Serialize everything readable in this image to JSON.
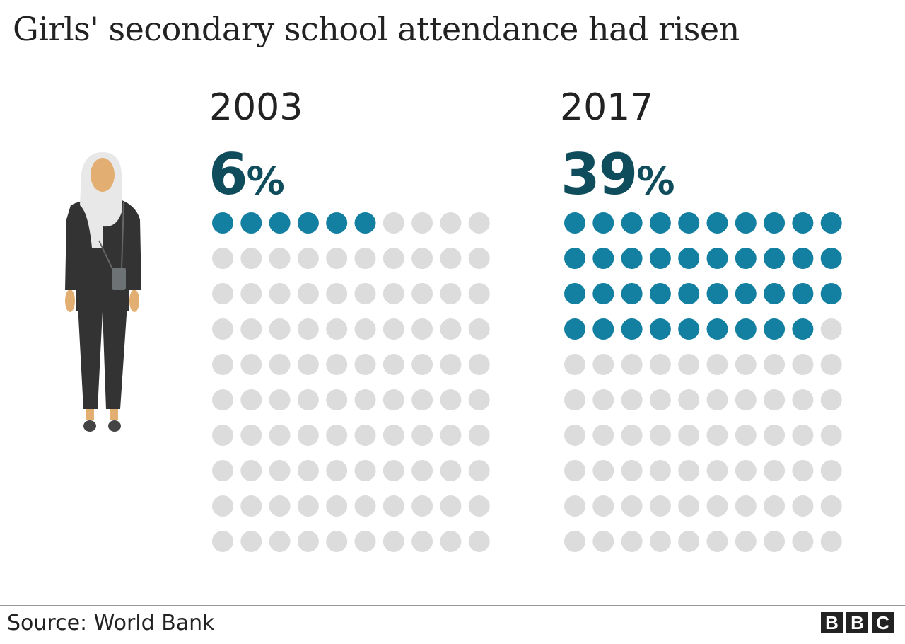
{
  "title": "Girls' secondary school attendance had risen",
  "source": "Source: World Bank",
  "logo": "BBC",
  "colors": {
    "filled": "#1380a1",
    "empty": "#dcdcdc",
    "percent_text": "#0f4c5c"
  },
  "chart_data": {
    "type": "waffle",
    "grid": [
      10,
      10
    ],
    "panels": [
      {
        "year": "2003",
        "value": 6,
        "value_label": "6",
        "unit": "%"
      },
      {
        "year": "2017",
        "value": 39,
        "value_label": "39",
        "unit": "%"
      }
    ]
  }
}
